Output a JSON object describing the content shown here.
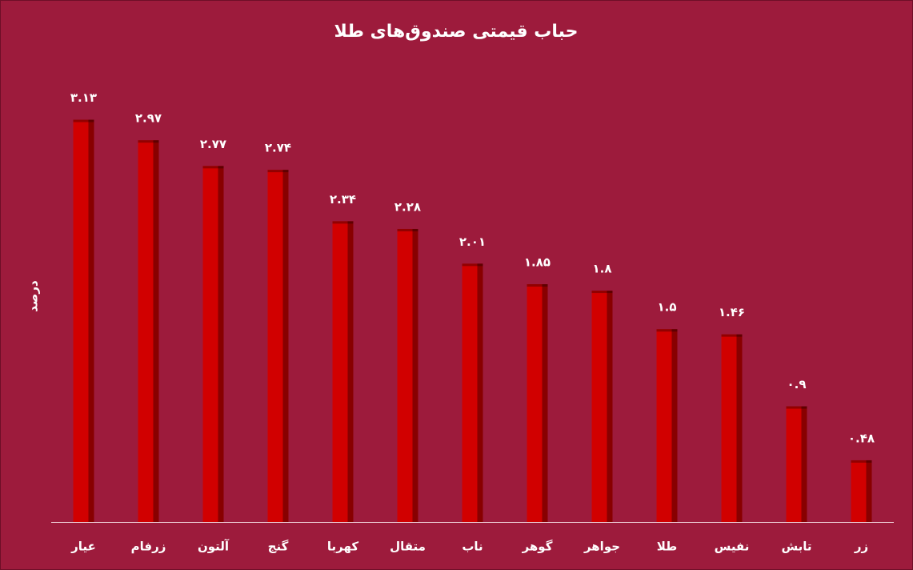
{
  "chart_data": {
    "type": "bar",
    "title": "حباب قیمتی صندوق‌های طلا",
    "y_label": "درصد",
    "categories": [
      "عیار",
      "زرفام",
      "آلتون",
      "گنج",
      "کهربا",
      "متقال",
      "ناب",
      "گوهر",
      "جواهر",
      "طلا",
      "نفیس",
      "تابش",
      "زر"
    ],
    "values": [
      3.13,
      2.97,
      2.77,
      2.74,
      2.34,
      2.28,
      2.01,
      1.85,
      1.8,
      1.5,
      1.46,
      0.9,
      0.48
    ],
    "value_labels": [
      "۳.۱۳",
      "۲.۹۷",
      "۲.۷۷",
      "۲.۷۴",
      "۲.۳۴",
      "۲.۲۸",
      "۲.۰۱",
      "۱.۸۵",
      "۱.۸",
      "۱.۵",
      "۱.۴۶",
      "۰.۹",
      "۰.۴۸"
    ],
    "color": "#d10000",
    "ylim": [
      0,
      3.75
    ]
  }
}
